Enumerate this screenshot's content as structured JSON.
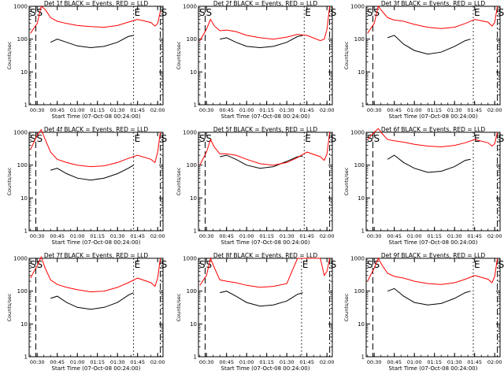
{
  "chart_data": [
    {
      "type": "line",
      "title": "Det 1f BLACK = Events, RED = LLD",
      "xlabel": "Start Time (07-Oct-08 00:24:00)",
      "ylabel": "Counts/sec",
      "yscale": "log",
      "ylim": [
        1,
        1000
      ],
      "xlim": [
        "00:24",
        "02:04"
      ],
      "xticks": [
        "00:30",
        "00:45",
        "01:00",
        "01:15",
        "01:30",
        "01:45",
        "02:00"
      ],
      "yticks": [
        "1",
        "10",
        "100",
        "1000"
      ],
      "markers": [
        {
          "label": "S",
          "time": "00:24"
        },
        {
          "label": "S",
          "time": "00:29"
        },
        {
          "label": "E",
          "time": "01:42"
        },
        {
          "label": "S",
          "time": "02:02"
        }
      ],
      "series": [
        {
          "color": "#000000",
          "x": [
            "00:40",
            "00:45",
            "00:52",
            "01:00",
            "01:10",
            "01:20",
            "01:30",
            "01:38",
            "01:42"
          ],
          "values": [
            80,
            100,
            80,
            62,
            55,
            60,
            80,
            120,
            130
          ]
        },
        {
          "color": "#ff0000",
          "x": [
            "00:25",
            "00:30",
            "00:33",
            "00:36",
            "00:40",
            "00:45",
            "00:52",
            "01:00",
            "01:10",
            "01:20",
            "01:30",
            "01:38",
            "01:45",
            "01:55",
            "01:58",
            "02:00",
            "02:02"
          ],
          "values": [
            150,
            300,
            1000,
            800,
            450,
            350,
            300,
            260,
            240,
            230,
            260,
            330,
            400,
            320,
            250,
            300,
            700
          ]
        }
      ]
    },
    {
      "type": "line",
      "title": "Det 2f BLACK = Events, RED = LLD",
      "xlabel": "Start Time (07-Oct-08 00:24:00)",
      "ylabel": "Counts/sec",
      "yscale": "log",
      "ylim": [
        1,
        1000
      ],
      "xlim": [
        "00:24",
        "02:04"
      ],
      "xticks": [
        "00:30",
        "00:45",
        "01:00",
        "01:15",
        "01:30",
        "01:45",
        "02:00"
      ],
      "yticks": [
        "1",
        "10",
        "100",
        "1000"
      ],
      "markers": [
        {
          "label": "S",
          "time": "00:24"
        },
        {
          "label": "S",
          "time": "00:29"
        },
        {
          "label": "E",
          "time": "01:43"
        },
        {
          "label": "S",
          "time": "02:02"
        }
      ],
      "series": [
        {
          "color": "#000000",
          "x": [
            "00:40",
            "00:45",
            "00:52",
            "01:00",
            "01:10",
            "01:20",
            "01:30",
            "01:38",
            "01:42"
          ],
          "values": [
            100,
            110,
            80,
            60,
            55,
            60,
            80,
            120,
            130
          ]
        },
        {
          "color": "#ff0000",
          "x": [
            "00:25",
            "00:30",
            "00:33",
            "00:36",
            "00:40",
            "00:45",
            "00:52",
            "01:00",
            "01:10",
            "01:20",
            "01:30",
            "01:38",
            "01:45",
            "01:55",
            "01:58",
            "02:00",
            "02:02"
          ],
          "values": [
            90,
            200,
            400,
            250,
            180,
            190,
            170,
            130,
            110,
            100,
            115,
            140,
            130,
            90,
            100,
            200,
            1000
          ]
        }
      ]
    },
    {
      "type": "line",
      "title": "Det 3f BLACK = Events, RED = LLD",
      "xlabel": "Start Time (07-Oct-08 00:24:00)",
      "ylabel": "Counts/sec",
      "yscale": "log",
      "ylim": [
        1,
        1000
      ],
      "xlim": [
        "00:24",
        "02:04"
      ],
      "xticks": [
        "00:30",
        "00:45",
        "01:00",
        "01:15",
        "01:30",
        "01:45",
        "02:00"
      ],
      "yticks": [
        "1",
        "10",
        "100",
        "1000"
      ],
      "markers": [
        {
          "label": "S",
          "time": "00:24"
        },
        {
          "label": "S",
          "time": "00:29"
        },
        {
          "label": "E",
          "time": "01:44"
        },
        {
          "label": "S",
          "time": "02:02"
        }
      ],
      "series": [
        {
          "color": "#000000",
          "x": [
            "00:40",
            "00:45",
            "00:52",
            "01:00",
            "01:10",
            "01:20",
            "01:30",
            "01:38",
            "01:42"
          ],
          "values": [
            110,
            130,
            70,
            45,
            35,
            40,
            60,
            90,
            100
          ]
        },
        {
          "color": "#ff0000",
          "x": [
            "00:25",
            "00:30",
            "00:33",
            "00:36",
            "00:40",
            "00:45",
            "00:52",
            "01:00",
            "01:10",
            "01:20",
            "01:30",
            "01:38",
            "01:45",
            "01:55",
            "01:58",
            "02:00",
            "02:02"
          ],
          "values": [
            150,
            300,
            1000,
            700,
            450,
            380,
            350,
            280,
            230,
            210,
            230,
            300,
            400,
            330,
            250,
            320,
            1000
          ]
        }
      ]
    },
    {
      "type": "line",
      "title": "Det 4f BLACK = Events, RED = LLD",
      "xlabel": "Start Time (07-Oct-08 00:24:00)",
      "ylabel": "Counts/sec",
      "yscale": "log",
      "ylim": [
        1,
        1000
      ],
      "xlim": [
        "00:24",
        "02:04"
      ],
      "xticks": [
        "00:30",
        "00:45",
        "01:00",
        "01:15",
        "01:30",
        "01:45",
        "02:00"
      ],
      "yticks": [
        "1",
        "10",
        "100",
        "1000"
      ],
      "markers": [
        {
          "label": "S",
          "time": "00:24"
        },
        {
          "label": "S",
          "time": "00:29"
        },
        {
          "label": "E",
          "time": "01:42"
        },
        {
          "label": "S",
          "time": "02:02"
        }
      ],
      "series": [
        {
          "color": "#000000",
          "x": [
            "00:40",
            "00:45",
            "00:52",
            "01:00",
            "01:10",
            "01:20",
            "01:30",
            "01:38",
            "01:42"
          ],
          "values": [
            70,
            80,
            55,
            40,
            35,
            40,
            55,
            80,
            100
          ]
        },
        {
          "color": "#ff0000",
          "x": [
            "00:25",
            "00:30",
            "00:33",
            "00:36",
            "00:40",
            "00:45",
            "00:52",
            "01:00",
            "01:10",
            "01:20",
            "01:30",
            "01:38",
            "01:45",
            "01:55",
            "01:58",
            "02:00",
            "02:02"
          ],
          "values": [
            300,
            800,
            1200,
            600,
            250,
            150,
            120,
            100,
            90,
            95,
            120,
            160,
            200,
            150,
            120,
            250,
            1000
          ]
        }
      ]
    },
    {
      "type": "line",
      "title": "Det 5f BLACK = Events, RED = LLD",
      "xlabel": "Start Time (07-Oct-08 00:24:00)",
      "ylabel": "Counts/sec",
      "yscale": "log",
      "ylim": [
        1,
        1000
      ],
      "xlim": [
        "00:24",
        "02:04"
      ],
      "xticks": [
        "00:30",
        "00:45",
        "01:00",
        "01:15",
        "01:30",
        "01:45",
        "02:00"
      ],
      "yticks": [
        "1",
        "10",
        "100",
        "1000"
      ],
      "markers": [
        {
          "label": "S",
          "time": "00:24"
        },
        {
          "label": "S",
          "time": "00:29"
        },
        {
          "label": "E",
          "time": "01:43"
        },
        {
          "label": "S",
          "time": "02:02"
        }
      ],
      "series": [
        {
          "color": "#000000",
          "x": [
            "00:40",
            "00:45",
            "00:52",
            "01:00",
            "01:10",
            "01:20",
            "01:30",
            "01:38",
            "01:42"
          ],
          "values": [
            180,
            200,
            150,
            100,
            80,
            90,
            130,
            180,
            190
          ]
        },
        {
          "color": "#ff0000",
          "x": [
            "00:25",
            "00:30",
            "00:33",
            "00:36",
            "00:40",
            "00:45",
            "00:52",
            "01:00",
            "01:10",
            "01:20",
            "01:30",
            "01:38",
            "01:45",
            "01:55",
            "01:58",
            "02:00",
            "02:02"
          ],
          "values": [
            100,
            250,
            600,
            350,
            220,
            220,
            200,
            150,
            110,
            100,
            120,
            170,
            250,
            180,
            140,
            220,
            1000
          ]
        }
      ]
    },
    {
      "type": "line",
      "title": "Det 6f BLACK = Events, RED = LLD",
      "xlabel": "Start Time (07-Oct-08 00:24:00)",
      "ylabel": "Counts/sec",
      "yscale": "log",
      "ylim": [
        1,
        1000
      ],
      "xlim": [
        "00:24",
        "02:04"
      ],
      "xticks": [
        "00:30",
        "00:45",
        "01:00",
        "01:15",
        "01:30",
        "01:45",
        "02:00"
      ],
      "yticks": [
        "1",
        "10",
        "100",
        "1000"
      ],
      "markers": [
        {
          "label": "S",
          "time": "00:24"
        },
        {
          "label": "S",
          "time": "00:29"
        },
        {
          "label": "E",
          "time": "01:44"
        },
        {
          "label": "S",
          "time": "02:02"
        }
      ],
      "series": [
        {
          "color": "#000000",
          "x": [
            "00:40",
            "00:45",
            "00:52",
            "01:00",
            "01:10",
            "01:20",
            "01:30",
            "01:38",
            "01:42"
          ],
          "values": [
            150,
            200,
            120,
            80,
            60,
            65,
            90,
            140,
            150
          ]
        },
        {
          "color": "#ff0000",
          "x": [
            "00:25",
            "00:30",
            "00:33",
            "00:36",
            "00:40",
            "00:45",
            "00:52",
            "01:00",
            "01:10",
            "01:20",
            "01:30",
            "01:38",
            "01:45",
            "01:55",
            "01:58",
            "02:00",
            "02:02"
          ],
          "values": [
            600,
            1000,
            1300,
            900,
            600,
            550,
            500,
            430,
            380,
            360,
            400,
            480,
            600,
            480,
            380,
            450,
            1000
          ]
        }
      ]
    },
    {
      "type": "line",
      "title": "Det 7f BLACK = Events, RED = LLD",
      "xlabel": "Start Time (07-Oct-08 00:24:00)",
      "ylabel": "Counts/sec",
      "yscale": "log",
      "ylim": [
        1,
        1000
      ],
      "xlim": [
        "00:24",
        "02:04"
      ],
      "xticks": [
        "00:30",
        "00:45",
        "01:00",
        "01:15",
        "01:30",
        "01:45",
        "02:00"
      ],
      "yticks": [
        "1",
        "10",
        "100",
        "1000"
      ],
      "markers": [
        {
          "label": "S",
          "time": "00:24"
        },
        {
          "label": "S",
          "time": "00:29"
        },
        {
          "label": "E",
          "time": "01:42"
        },
        {
          "label": "S",
          "time": "02:02"
        }
      ],
      "series": [
        {
          "color": "#000000",
          "x": [
            "00:40",
            "00:45",
            "00:52",
            "01:00",
            "01:10",
            "01:20",
            "01:30",
            "01:38",
            "01:42"
          ],
          "values": [
            60,
            70,
            45,
            32,
            28,
            32,
            45,
            75,
            90
          ]
        },
        {
          "color": "#ff0000",
          "x": [
            "00:25",
            "00:30",
            "00:33",
            "00:36",
            "00:40",
            "00:45",
            "00:52",
            "01:00",
            "01:10",
            "01:20",
            "01:30",
            "01:38",
            "01:45",
            "01:55",
            "01:58",
            "02:00",
            "02:02"
          ],
          "values": [
            250,
            600,
            1100,
            500,
            220,
            160,
            130,
            110,
            95,
            100,
            130,
            180,
            250,
            180,
            140,
            250,
            1000
          ]
        }
      ]
    },
    {
      "type": "line",
      "title": "Det 8f BLACK = Events, RED = LLD",
      "xlabel": "Start Time (07-Oct-08 00:24:00)",
      "ylabel": "Counts/sec",
      "yscale": "log",
      "ylim": [
        1,
        1000
      ],
      "xlim": [
        "00:24",
        "02:04"
      ],
      "xticks": [
        "00:30",
        "00:45",
        "01:00",
        "01:15",
        "01:30",
        "01:45",
        "02:00"
      ],
      "yticks": [
        "1",
        "10",
        "100",
        "1000"
      ],
      "markers": [
        {
          "label": "S",
          "time": "00:24"
        },
        {
          "label": "S",
          "time": "00:29"
        },
        {
          "label": "E",
          "time": "01:41"
        },
        {
          "label": "S",
          "time": "02:02"
        }
      ],
      "series": [
        {
          "color": "#000000",
          "x": [
            "00:40",
            "00:45",
            "00:52",
            "01:00",
            "01:10",
            "01:20",
            "01:30",
            "01:38",
            "01:42"
          ],
          "values": [
            90,
            100,
            70,
            45,
            35,
            38,
            50,
            80,
            90
          ]
        },
        {
          "color": "#ff0000",
          "x": [
            "00:25",
            "00:30",
            "00:33",
            "00:36",
            "00:40",
            "00:45",
            "00:52",
            "01:00",
            "01:10",
            "01:20",
            "01:30",
            "01:38",
            "01:45",
            "01:55",
            "01:58",
            "02:00",
            "02:02"
          ],
          "values": [
            150,
            300,
            1000,
            500,
            220,
            200,
            180,
            150,
            130,
            140,
            170,
            1000,
            1000,
            1000,
            300,
            400,
            1000
          ]
        }
      ]
    },
    {
      "type": "line",
      "title": "Det 9f BLACK = Events, RED = LLD",
      "xlabel": "Start Time (07-Oct-08 00:24:00)",
      "ylabel": "Counts/sec",
      "yscale": "log",
      "ylim": [
        1,
        1000
      ],
      "xlim": [
        "00:24",
        "02:04"
      ],
      "xticks": [
        "00:30",
        "00:45",
        "01:00",
        "01:15",
        "01:30",
        "01:45",
        "02:00"
      ],
      "yticks": [
        "1",
        "10",
        "100",
        "1000"
      ],
      "markers": [
        {
          "label": "S",
          "time": "00:24"
        },
        {
          "label": "S",
          "time": "00:29"
        },
        {
          "label": "E",
          "time": "01:44"
        },
        {
          "label": "S",
          "time": "02:02"
        }
      ],
      "series": [
        {
          "color": "#000000",
          "x": [
            "00:40",
            "00:45",
            "00:52",
            "01:00",
            "01:10",
            "01:20",
            "01:30",
            "01:38",
            "01:42"
          ],
          "values": [
            100,
            120,
            70,
            45,
            38,
            42,
            60,
            90,
            100
          ]
        },
        {
          "color": "#ff0000",
          "x": [
            "00:25",
            "00:30",
            "00:33",
            "00:36",
            "00:40",
            "00:45",
            "00:52",
            "01:00",
            "01:10",
            "01:20",
            "01:30",
            "01:38",
            "01:45",
            "01:55",
            "01:58",
            "02:00",
            "02:02"
          ],
          "values": [
            200,
            500,
            1000,
            600,
            350,
            280,
            250,
            200,
            170,
            160,
            180,
            230,
            300,
            230,
            180,
            280,
            1000
          ]
        }
      ]
    }
  ]
}
